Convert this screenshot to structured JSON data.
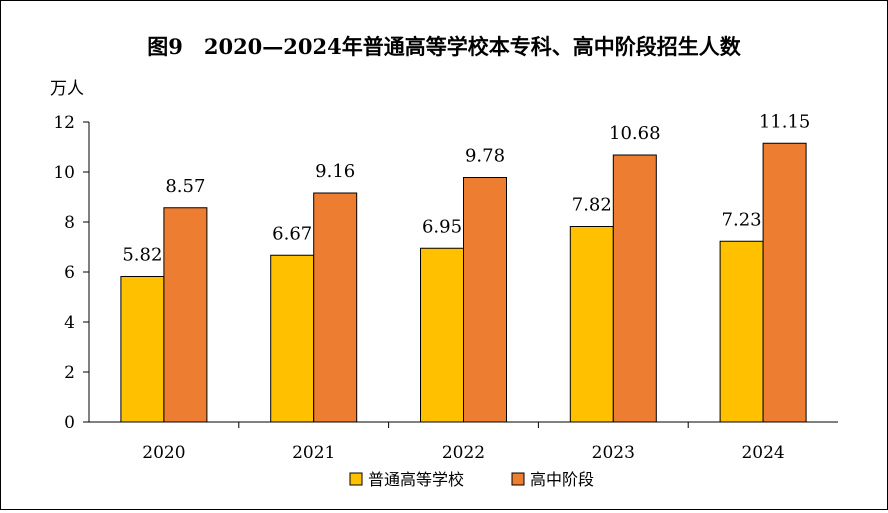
{
  "chart_data": {
    "type": "bar",
    "title": "图9　2020—2024年普通高等学校本专科、高中阶段招生人数",
    "ylabel": "万人",
    "xlabel": "",
    "categories": [
      "2020",
      "2021",
      "2022",
      "2023",
      "2024"
    ],
    "series": [
      {
        "name": "普通高等学校",
        "values": [
          5.82,
          6.67,
          6.95,
          7.82,
          7.23
        ],
        "color": "#FFC000"
      },
      {
        "name": "高中阶段",
        "values": [
          8.57,
          9.16,
          9.78,
          10.68,
          11.15
        ],
        "color": "#ED7D31"
      }
    ],
    "ylim": [
      0,
      12
    ],
    "yticks": [
      0,
      2,
      4,
      6,
      8,
      10,
      12
    ],
    "grid": false,
    "legend": "bottom-center"
  }
}
